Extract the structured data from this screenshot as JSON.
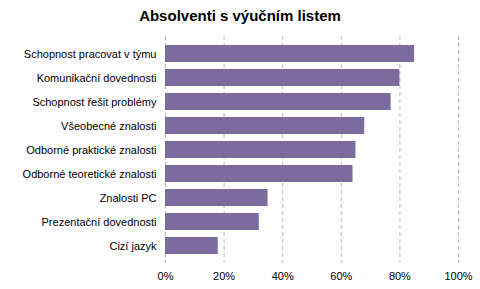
{
  "chart_data": {
    "type": "bar",
    "orientation": "horizontal",
    "title": "Absolventi s výučním listem",
    "categories": [
      "Cizí jazyk",
      "Prezentační dovednosti",
      "Znalosti PC",
      "Odborné teoretické znalosti",
      "Odborné praktické znalosti",
      "Všeobecné znalosti",
      "Schopnost řešit problémy",
      "Komunikační dovednosti",
      "Schopnost pracovat v týmu"
    ],
    "values": [
      0.18,
      0.32,
      0.35,
      0.64,
      0.65,
      0.68,
      0.77,
      0.8,
      0.85
    ],
    "color": "#7B6B9E",
    "xlim": [
      0,
      1.0
    ],
    "xticks": [
      {
        "value": 0.0,
        "label": "0%"
      },
      {
        "value": 0.2,
        "label": "20%"
      },
      {
        "value": 0.4,
        "label": "40%"
      },
      {
        "value": 0.6,
        "label": "60%"
      },
      {
        "value": 0.8,
        "label": "80%"
      },
      {
        "value": 1.0,
        "label": "100%"
      }
    ],
    "grid": true
  }
}
